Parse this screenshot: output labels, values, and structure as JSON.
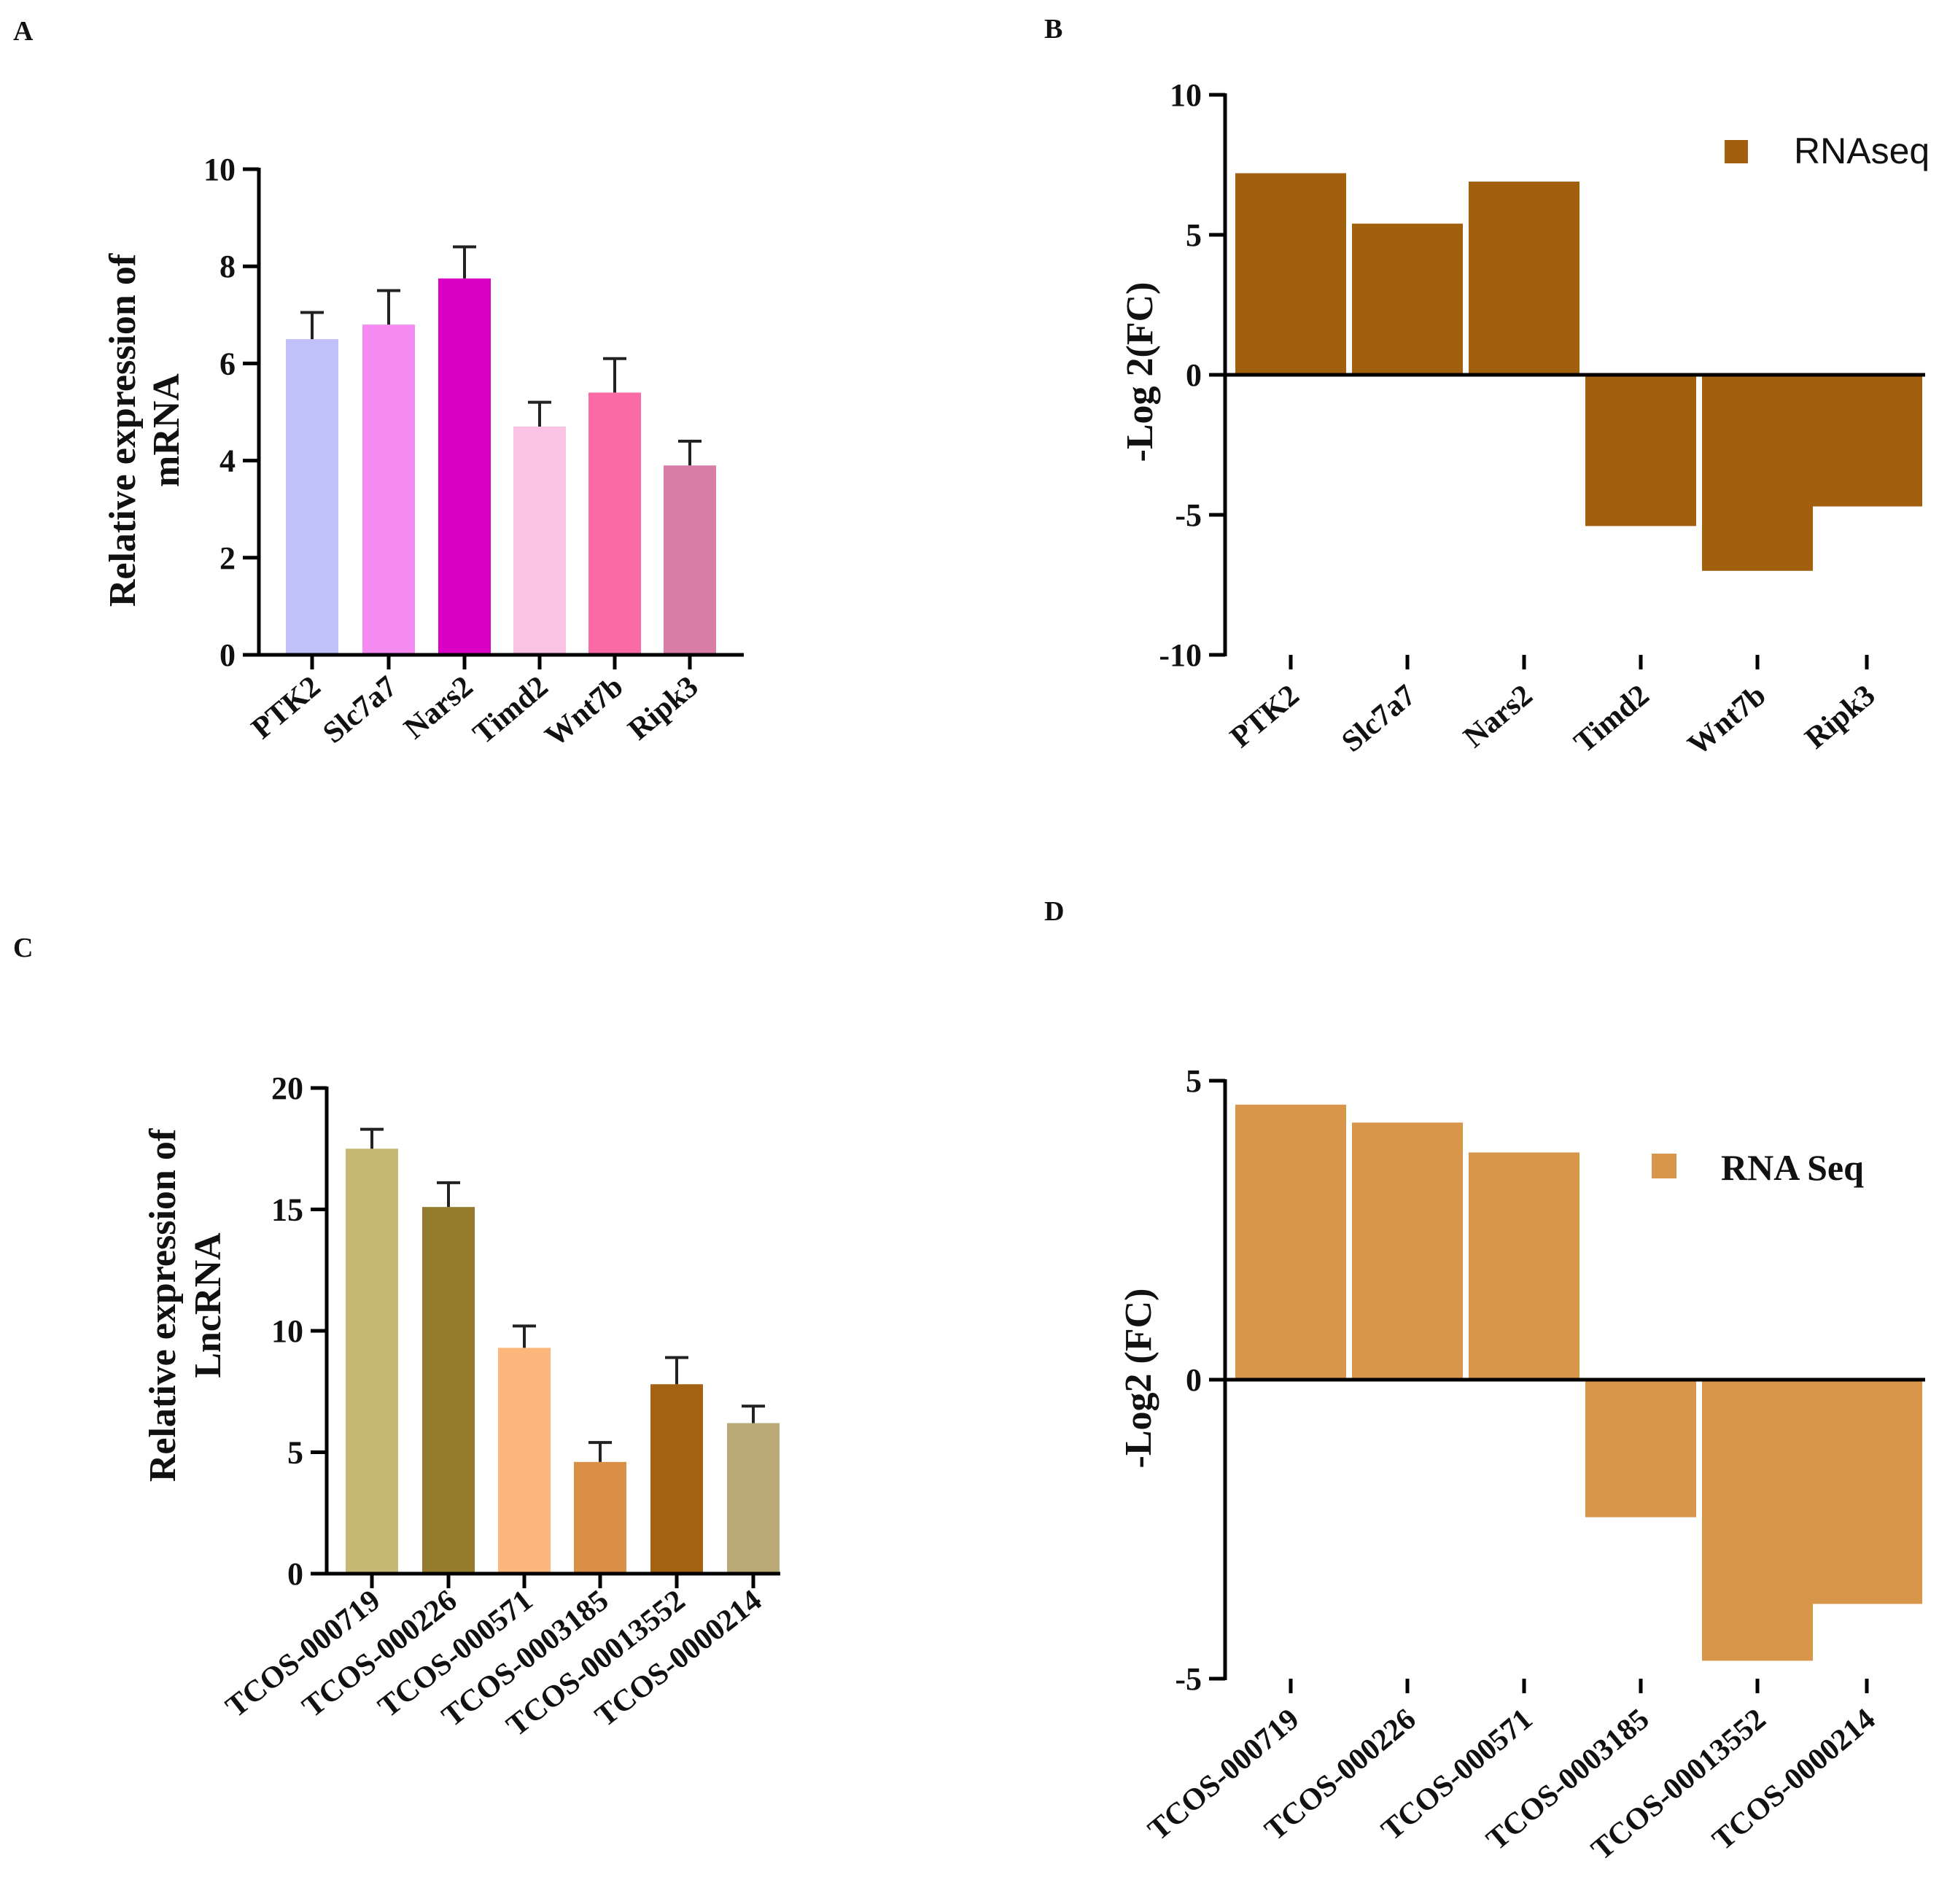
{
  "panels": {
    "A": {
      "letter": "A"
    },
    "B": {
      "letter": "B"
    },
    "C": {
      "letter": "C"
    },
    "D": {
      "letter": "D"
    }
  },
  "chart_data": [
    {
      "id": "A",
      "type": "bar",
      "ylabel_lines": [
        "Relative expression of",
        "mRNA"
      ],
      "categories": [
        "PTK2",
        "Slc7a7",
        "Nars2",
        "Timd2",
        "Wnt7b",
        "Ripk3"
      ],
      "values": [
        6.5,
        6.8,
        7.75,
        4.7,
        5.4,
        3.9
      ],
      "errors": [
        0.55,
        0.7,
        0.65,
        0.5,
        0.7,
        0.5
      ],
      "colors": [
        "#c1c1f9",
        "#f58af3",
        "#db00c6",
        "#fbc3e3",
        "#fa6ba6",
        "#d97ea8"
      ],
      "ylim": [
        0,
        10
      ],
      "yticks": [
        0,
        2,
        4,
        6,
        8,
        10
      ],
      "ytick_labels": [
        "0",
        "2",
        "4",
        "6",
        "8",
        "10"
      ]
    },
    {
      "id": "B",
      "type": "bar",
      "ylabel": "-Log 2(FC)",
      "categories": [
        "PTK2",
        "Slc7a7",
        "Nars2",
        "Timd2",
        "Wnt7b",
        "Ripk3"
      ],
      "values": [
        7.2,
        5.4,
        6.9,
        -5.4,
        -7.0,
        -4.7
      ],
      "color": "#a2600f",
      "legend": "RNAseq",
      "ylim": [
        -10,
        10
      ],
      "yticks": [
        -10,
        -5,
        0,
        5,
        10
      ],
      "ytick_labels": [
        "-10",
        "-5",
        "0",
        "5",
        "10"
      ]
    },
    {
      "id": "C",
      "type": "bar",
      "ylabel_lines": [
        "Relative expression of",
        "LncRNA"
      ],
      "categories": [
        "TCOS-000719",
        "TCOS-000226",
        "TCOS-000571",
        "TCOS-0003185",
        "TCOS-00013552",
        "TCOS-0000214"
      ],
      "values": [
        17.5,
        15.1,
        9.3,
        4.6,
        7.8,
        6.2
      ],
      "errors": [
        0.8,
        1.0,
        0.9,
        0.8,
        1.1,
        0.7
      ],
      "colors": [
        "#c6b774",
        "#957c2d",
        "#fdb77c",
        "#d98f45",
        "#a26211",
        "#b8a976"
      ],
      "ylim": [
        0,
        20
      ],
      "yticks": [
        0,
        5,
        10,
        15,
        20
      ],
      "ytick_labels": [
        "0",
        "5",
        "10",
        "15",
        "20"
      ]
    },
    {
      "id": "D",
      "type": "bar",
      "ylabel": "-Log2 (FC)",
      "categories": [
        "TCOS-000719",
        "TCOS-000226",
        "TCOS-000571",
        "TCOS-0003185",
        "TCOS-00013552",
        "TCOS-0000214"
      ],
      "values": [
        4.6,
        4.3,
        3.8,
        -2.3,
        -4.7,
        -3.75
      ],
      "color": "#d8964b",
      "legend": "RNA Seq",
      "ylim": [
        -5,
        5
      ],
      "yticks": [
        -5,
        0,
        5
      ],
      "ytick_labels": [
        "-5",
        "0",
        "5"
      ]
    }
  ]
}
